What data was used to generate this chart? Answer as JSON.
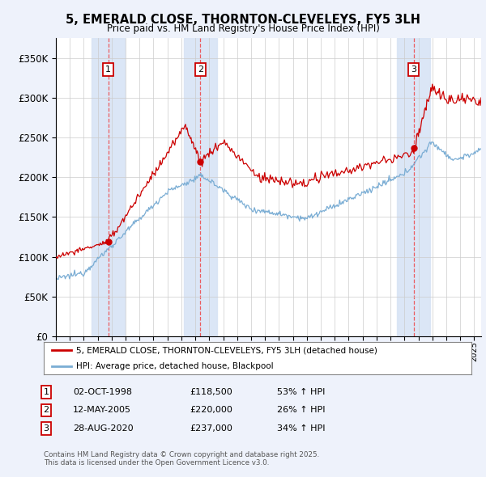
{
  "title": "5, EMERALD CLOSE, THORNTON-CLEVELEYS, FY5 3LH",
  "subtitle": "Price paid vs. HM Land Registry's House Price Index (HPI)",
  "red_label": "5, EMERALD CLOSE, THORNTON-CLEVELEYS, FY5 3LH (detached house)",
  "blue_label": "HPI: Average price, detached house, Blackpool",
  "transactions": [
    {
      "num": 1,
      "date": "02-OCT-1998",
      "price": 118500,
      "pct": "53%",
      "x_year": 1998.75
    },
    {
      "num": 2,
      "date": "12-MAY-2005",
      "price": 220000,
      "pct": "26%",
      "x_year": 2005.36
    },
    {
      "num": 3,
      "date": "28-AUG-2020",
      "price": 237000,
      "pct": "34%",
      "x_year": 2020.66
    }
  ],
  "footnote": "Contains HM Land Registry data © Crown copyright and database right 2025.\nThis data is licensed under the Open Government Licence v3.0.",
  "bg_color": "#eef2fb",
  "plot_bg": "#ffffff",
  "red_color": "#cc0000",
  "blue_color": "#7aadd4",
  "vline_color": "#ee4444",
  "shade_color": "#d8e4f5",
  "ylim": [
    0,
    375000
  ],
  "xlim_start": 1995.0,
  "xlim_end": 2025.5
}
